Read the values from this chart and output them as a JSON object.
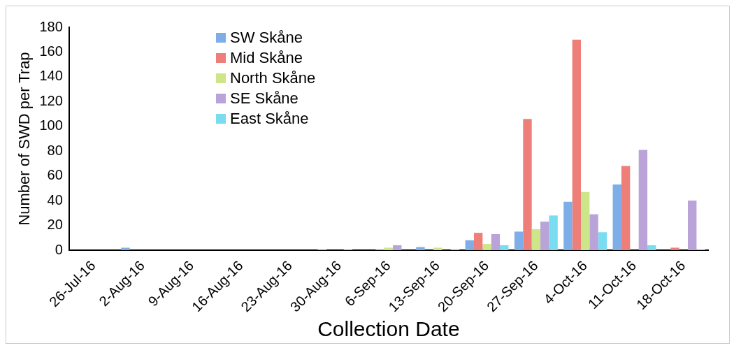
{
  "chart_data": {
    "type": "bar",
    "xlabel": "Collection Date",
    "ylabel": "Number of SWD per Trap",
    "categories": [
      "26-Jul-16",
      "2-Aug-16",
      "9-Aug-16",
      "16-Aug-16",
      "23-Aug-16",
      "30-Aug-16",
      "6-Sep-16",
      "13-Sep-16",
      "20-Sep-16",
      "27-Sep-16",
      "4-Oct-16",
      "11-Oct-16",
      "18-Oct-16"
    ],
    "series": [
      {
        "name": "SW Skåne",
        "color": "#7eaee8",
        "values": [
          0,
          2,
          0,
          0,
          0,
          0.5,
          0,
          2.5,
          8,
          15,
          39,
          53,
          0
        ]
      },
      {
        "name": "Mid Skåne",
        "color": "#ee7f78",
        "values": [
          0,
          0,
          0,
          0,
          0,
          0,
          0.5,
          0,
          14,
          106,
          170,
          68,
          2
        ]
      },
      {
        "name": "North Skåne",
        "color": "#cde68a",
        "values": [
          0,
          0,
          0,
          0,
          0,
          0,
          2,
          2,
          5,
          17,
          47,
          0,
          0
        ]
      },
      {
        "name": "SE Skåne",
        "color": "#b9a3d9",
        "values": [
          0,
          0,
          0,
          0,
          0,
          0.5,
          4,
          0,
          13,
          23,
          29,
          81,
          40
        ]
      },
      {
        "name": "East Skåne",
        "color": "#7adcf0",
        "values": [
          0,
          0,
          0,
          0,
          0,
          0,
          0,
          0.8,
          4,
          28,
          14.5,
          4,
          0.5
        ]
      }
    ],
    "ylim": [
      0,
      180
    ],
    "yticks": [
      0,
      20,
      40,
      60,
      80,
      100,
      120,
      140,
      160,
      180
    ],
    "grid": false,
    "legend": "top left"
  }
}
